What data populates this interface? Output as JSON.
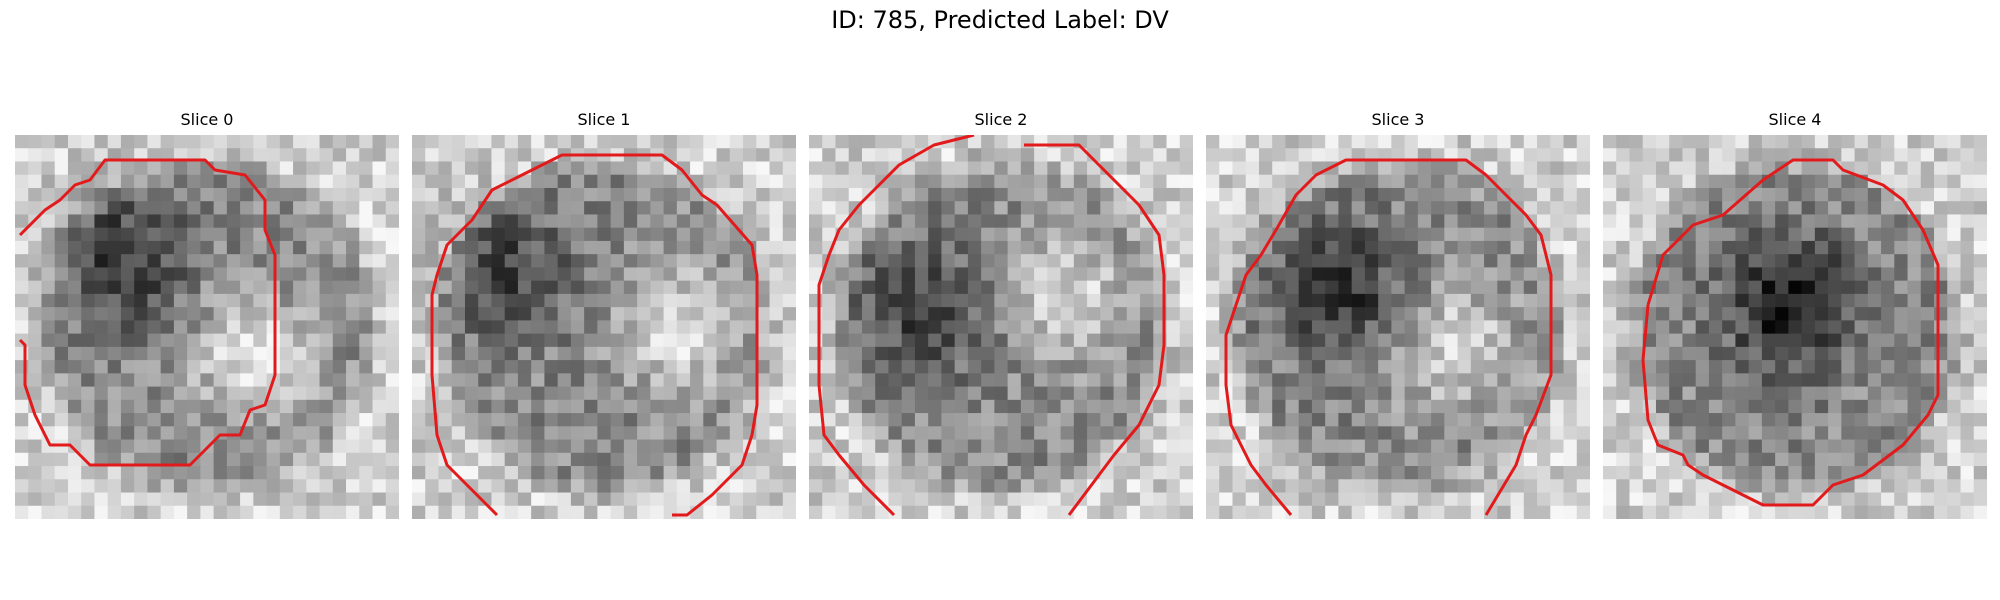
{
  "figure": {
    "title": "ID: 785, Predicted Label: DV"
  },
  "slices": [
    {
      "label": "Slice 0",
      "seed": 11,
      "dark_center": [
        0.28,
        0.32
      ],
      "dark_strength": 0.55,
      "bright_center": [
        0.62,
        0.58
      ],
      "bright_strength": 0.35
    },
    {
      "label": "Slice 1",
      "seed": 23,
      "dark_center": [
        0.25,
        0.35
      ],
      "dark_strength": 0.45,
      "bright_center": [
        0.7,
        0.5
      ],
      "bright_strength": 0.35
    },
    {
      "label": "Slice 2",
      "seed": 37,
      "dark_center": [
        0.3,
        0.45
      ],
      "dark_strength": 0.5,
      "bright_center": [
        0.68,
        0.42
      ],
      "bright_strength": 0.3
    },
    {
      "label": "Slice 3",
      "seed": 41,
      "dark_center": [
        0.35,
        0.4
      ],
      "dark_strength": 0.6,
      "bright_center": [
        0.65,
        0.55
      ],
      "bright_strength": 0.3
    },
    {
      "label": "Slice 4",
      "seed": 53,
      "dark_center": [
        0.5,
        0.45
      ],
      "dark_strength": 0.85,
      "bright_center": [
        0.6,
        0.5
      ],
      "bright_strength": 0.1
    }
  ],
  "contour_color": "#e31a1c"
}
